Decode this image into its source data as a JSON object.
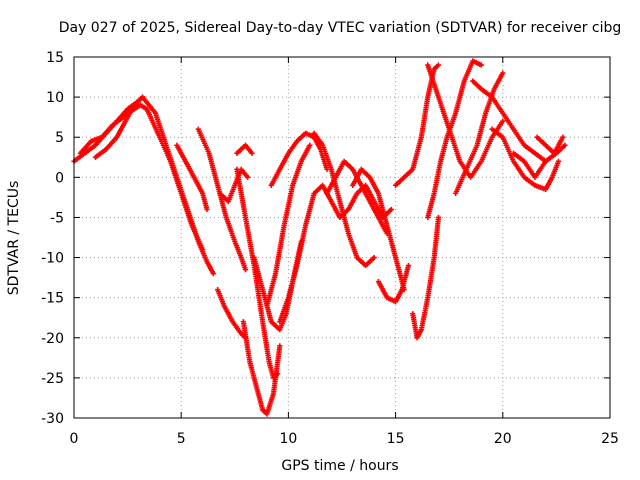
{
  "chart_data": {
    "type": "scatter",
    "title": "Day 027 of 2025, Sidereal Day-to-day VTEC variation (SDTVAR) for receiver cibg",
    "xlabel": "GPS time / hours",
    "ylabel": "SDTVAR / TECUs",
    "xlim": [
      0,
      25
    ],
    "ylim": [
      -30,
      15
    ],
    "xticks": [
      0,
      5,
      10,
      15,
      20,
      25
    ],
    "yticks": [
      15,
      10,
      5,
      0,
      -5,
      -10,
      -15,
      -20,
      -25,
      -30
    ],
    "grid": true,
    "marker": "plus",
    "color": "#ff0000",
    "series": [
      {
        "x": [
          0.0,
          0.5,
          1.0,
          1.5,
          2.0,
          2.5,
          3.0,
          3.2
        ],
        "y": [
          2.0,
          3.0,
          4.0,
          5.5,
          7.0,
          8.5,
          9.5,
          10.0
        ]
      },
      {
        "x": [
          0.3,
          0.8,
          1.3,
          1.8,
          2.3,
          2.8,
          3.1,
          3.4
        ],
        "y": [
          3.0,
          4.5,
          5.0,
          6.5,
          7.5,
          8.5,
          9.0,
          8.5
        ]
      },
      {
        "x": [
          1.0,
          1.5,
          2.0,
          2.3,
          2.7,
          3.0
        ],
        "y": [
          2.5,
          3.5,
          5.0,
          6.5,
          8.5,
          9.0
        ]
      },
      {
        "x": [
          3.2,
          3.8,
          4.3,
          4.8,
          5.3,
          5.8,
          6.2,
          6.5
        ],
        "y": [
          10.0,
          8.0,
          4.0,
          0.0,
          -4.0,
          -8.0,
          -10.5,
          -12.0
        ]
      },
      {
        "x": [
          3.4,
          4.0,
          4.5,
          5.0,
          5.5,
          6.0
        ],
        "y": [
          8.5,
          5.0,
          2.0,
          -2.0,
          -6.0,
          -9.0
        ]
      },
      {
        "x": [
          4.8,
          5.2,
          5.6,
          6.0,
          6.2
        ],
        "y": [
          4.0,
          2.0,
          0.0,
          -2.0,
          -4.0
        ]
      },
      {
        "x": [
          5.8,
          6.3,
          6.7,
          7.1,
          7.5,
          7.8,
          8.0
        ],
        "y": [
          6.0,
          3.0,
          -1.0,
          -5.0,
          -8.0,
          -10.0,
          -11.5
        ]
      },
      {
        "x": [
          6.8,
          7.2,
          7.5,
          7.8,
          8.1
        ],
        "y": [
          -2.0,
          -3.0,
          -1.0,
          1.0,
          0.0
        ]
      },
      {
        "x": [
          7.6,
          8.0,
          8.3
        ],
        "y": [
          3.0,
          4.0,
          3.0
        ]
      },
      {
        "x": [
          6.7,
          7.0,
          7.4,
          7.8,
          8.0
        ],
        "y": [
          -14.0,
          -16.0,
          -18.0,
          -19.5,
          -20.0
        ]
      },
      {
        "x": [
          7.6,
          8.0,
          8.4,
          8.8,
          9.1,
          9.3,
          9.5
        ],
        "y": [
          1.0,
          -5.0,
          -11.0,
          -18.0,
          -23.0,
          -25.0,
          -24.5
        ]
      },
      {
        "x": [
          7.9,
          8.2,
          8.5,
          8.8,
          9.0,
          9.3,
          9.6
        ],
        "y": [
          -18.0,
          -23.0,
          -26.0,
          -29.0,
          -29.5,
          -27.0,
          -21.0
        ]
      },
      {
        "x": [
          9.0,
          9.4,
          9.8,
          10.2,
          10.6,
          11.0
        ],
        "y": [
          -16.0,
          -12.0,
          -6.0,
          -1.0,
          2.0,
          4.0
        ]
      },
      {
        "x": [
          9.2,
          9.6,
          10.0,
          10.4,
          10.8,
          11.2,
          11.5,
          11.8
        ],
        "y": [
          -1.0,
          1.0,
          3.0,
          4.5,
          5.5,
          5.0,
          3.5,
          1.0
        ]
      },
      {
        "x": [
          8.4,
          8.8,
          9.2,
          9.6,
          9.9,
          10.2,
          10.6
        ],
        "y": [
          -10.0,
          -14.0,
          -18.0,
          -19.0,
          -17.0,
          -13.0,
          -8.0
        ]
      },
      {
        "x": [
          9.6,
          10.0,
          10.4,
          10.8,
          11.2,
          11.6,
          12.0,
          12.4
        ],
        "y": [
          -18.0,
          -15.0,
          -11.0,
          -6.0,
          -2.0,
          -1.0,
          -3.0,
          -5.0
        ]
      },
      {
        "x": [
          11.2,
          11.6,
          12.0,
          12.4,
          12.8,
          13.2,
          13.6,
          14.0
        ],
        "y": [
          5.5,
          4.0,
          1.0,
          -3.0,
          -7.0,
          -10.0,
          -11.0,
          -10.0
        ]
      },
      {
        "x": [
          11.8,
          12.2,
          12.6,
          13.0,
          13.4,
          13.8,
          14.2,
          14.6
        ],
        "y": [
          -2.0,
          0.0,
          2.0,
          1.0,
          -1.0,
          -3.0,
          -5.0,
          -7.0
        ]
      },
      {
        "x": [
          12.4,
          12.8,
          13.2,
          13.6,
          14.0,
          14.4,
          14.8
        ],
        "y": [
          -5.0,
          -4.0,
          -2.0,
          -1.0,
          -3.0,
          -5.0,
          -4.0
        ]
      },
      {
        "x": [
          13.0,
          13.4,
          13.8,
          14.2,
          14.6,
          15.0,
          15.4
        ],
        "y": [
          -1.0,
          1.0,
          0.0,
          -2.0,
          -6.0,
          -10.0,
          -14.0
        ]
      },
      {
        "x": [
          14.2,
          14.6,
          15.0,
          15.3,
          15.6
        ],
        "y": [
          -13.0,
          -15.0,
          -15.5,
          -14.0,
          -11.0
        ]
      },
      {
        "x": [
          15.0,
          15.4,
          15.8,
          16.2,
          16.5,
          16.8,
          17.0
        ],
        "y": [
          -1.0,
          0.0,
          1.0,
          5.0,
          10.0,
          13.5,
          14.0
        ]
      },
      {
        "x": [
          15.8,
          16.0,
          16.2,
          16.5,
          16.8,
          17.0
        ],
        "y": [
          -17.0,
          -20.0,
          -19.0,
          -15.0,
          -10.0,
          -5.0
        ]
      },
      {
        "x": [
          16.5,
          16.8,
          17.1,
          17.4,
          17.8,
          18.2,
          18.6,
          19.0
        ],
        "y": [
          -5.0,
          -2.0,
          2.0,
          5.0,
          8.0,
          12.0,
          14.5,
          14.0
        ]
      },
      {
        "x": [
          16.5,
          17.0,
          17.5,
          18.0,
          18.5,
          19.0,
          19.5,
          20.0
        ],
        "y": [
          14.0,
          10.0,
          6.0,
          2.0,
          0.0,
          2.0,
          5.0,
          7.0
        ]
      },
      {
        "x": [
          17.8,
          18.3,
          18.8,
          19.2,
          19.6,
          20.0
        ],
        "y": [
          -2.0,
          1.0,
          4.0,
          8.0,
          11.0,
          13.0
        ]
      },
      {
        "x": [
          18.6,
          19.0,
          19.5,
          20.0,
          20.5,
          21.0,
          21.5,
          22.0
        ],
        "y": [
          12.0,
          11.0,
          10.0,
          8.0,
          6.0,
          4.0,
          3.0,
          2.0
        ]
      },
      {
        "x": [
          19.5,
          20.0,
          20.5,
          21.0,
          21.5,
          22.0,
          22.3,
          22.6
        ],
        "y": [
          6.0,
          5.0,
          2.0,
          0.0,
          -1.0,
          -1.5,
          0.0,
          2.0
        ]
      },
      {
        "x": [
          20.5,
          21.0,
          21.5,
          22.0,
          22.5,
          22.9
        ],
        "y": [
          3.0,
          2.0,
          0.0,
          2.0,
          3.0,
          4.0
        ]
      },
      {
        "x": [
          21.6,
          22.0,
          22.4,
          22.8
        ],
        "y": [
          5.0,
          4.0,
          3.0,
          5.0
        ]
      }
    ]
  }
}
